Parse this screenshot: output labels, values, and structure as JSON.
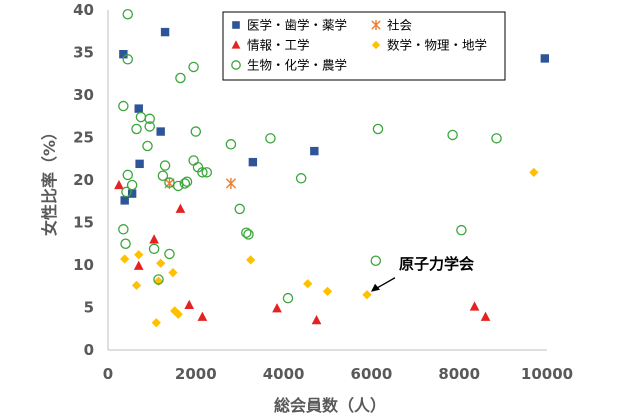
{
  "chart_data": {
    "type": "scatter",
    "title": "",
    "xlabel": "総会員数（人）",
    "ylabel": "女性比率（%）",
    "xlim": [
      0,
      10000
    ],
    "ylim": [
      0,
      40
    ],
    "x_ticks": [
      "0",
      "2000",
      "4000",
      "6000",
      "8000",
      "10000"
    ],
    "y_ticks": [
      "0",
      "5",
      "10",
      "15",
      "20",
      "25",
      "30",
      "35",
      "40"
    ],
    "grid": false,
    "legend_position": "top-center, two columns",
    "series": [
      {
        "name": "医学・歯学・薬学",
        "marker": "square",
        "color": "#2e5597",
        "points": [
          [
            350,
            34.8
          ],
          [
            700,
            28.4
          ],
          [
            1300,
            37.4
          ],
          [
            1200,
            25.7
          ],
          [
            720,
            21.9
          ],
          [
            550,
            18.4
          ],
          [
            380,
            17.6
          ],
          [
            3300,
            22.1
          ],
          [
            4700,
            23.4
          ],
          [
            9950,
            34.3
          ]
        ]
      },
      {
        "name": "社会",
        "marker": "asterisk",
        "color": "#ed7d31",
        "points": [
          [
            1400,
            19.6
          ],
          [
            2800,
            19.6
          ]
        ]
      },
      {
        "name": "情報・工学",
        "marker": "triangle",
        "color": "#e52222",
        "points": [
          [
            250,
            19.4
          ],
          [
            1050,
            13.0
          ],
          [
            700,
            9.9
          ],
          [
            1650,
            16.6
          ],
          [
            1850,
            5.3
          ],
          [
            2150,
            3.9
          ],
          [
            3850,
            4.9
          ],
          [
            4750,
            3.5
          ],
          [
            8350,
            5.1
          ],
          [
            8600,
            3.9
          ]
        ]
      },
      {
        "name": "数学・物理・地学",
        "marker": "diamond",
        "color": "#ffc000",
        "points": [
          [
            380,
            10.7
          ],
          [
            700,
            11.2
          ],
          [
            650,
            7.6
          ],
          [
            1200,
            10.2
          ],
          [
            1150,
            8.1
          ],
          [
            1480,
            9.1
          ],
          [
            1520,
            4.6
          ],
          [
            1600,
            4.2
          ],
          [
            1100,
            3.2
          ],
          [
            3250,
            10.6
          ],
          [
            4550,
            7.8
          ],
          [
            5000,
            6.9
          ],
          [
            5900,
            6.5
          ],
          [
            9700,
            20.9
          ]
        ]
      },
      {
        "name": "生物・化学・農学",
        "marker": "circle-open",
        "color": "#3aa53a",
        "points": [
          [
            450,
            39.5
          ],
          [
            450,
            34.2
          ],
          [
            350,
            28.7
          ],
          [
            750,
            27.4
          ],
          [
            950,
            27.2
          ],
          [
            650,
            26.0
          ],
          [
            950,
            26.3
          ],
          [
            900,
            24.0
          ],
          [
            450,
            20.6
          ],
          [
            550,
            19.4
          ],
          [
            420,
            18.6
          ],
          [
            1300,
            21.7
          ],
          [
            1250,
            20.5
          ],
          [
            1400,
            19.7
          ],
          [
            1650,
            32.0
          ],
          [
            1950,
            33.3
          ],
          [
            2000,
            25.7
          ],
          [
            1950,
            22.3
          ],
          [
            2050,
            21.5
          ],
          [
            2150,
            20.9
          ],
          [
            2250,
            20.9
          ],
          [
            1800,
            19.8
          ],
          [
            1600,
            19.3
          ],
          [
            1750,
            19.6
          ],
          [
            2800,
            24.2
          ],
          [
            3700,
            24.9
          ],
          [
            4400,
            20.2
          ],
          [
            3000,
            16.6
          ],
          [
            3150,
            13.8
          ],
          [
            3200,
            13.6
          ],
          [
            350,
            14.2
          ],
          [
            400,
            12.5
          ],
          [
            1050,
            11.9
          ],
          [
            1400,
            11.3
          ],
          [
            1150,
            8.3
          ],
          [
            4100,
            6.1
          ],
          [
            6100,
            10.5
          ],
          [
            6150,
            26.0
          ],
          [
            7850,
            25.3
          ],
          [
            8050,
            14.1
          ],
          [
            8850,
            24.9
          ]
        ]
      }
    ],
    "annotation": {
      "text": "原子力学会",
      "x": 5900,
      "y": 6.5
    }
  }
}
